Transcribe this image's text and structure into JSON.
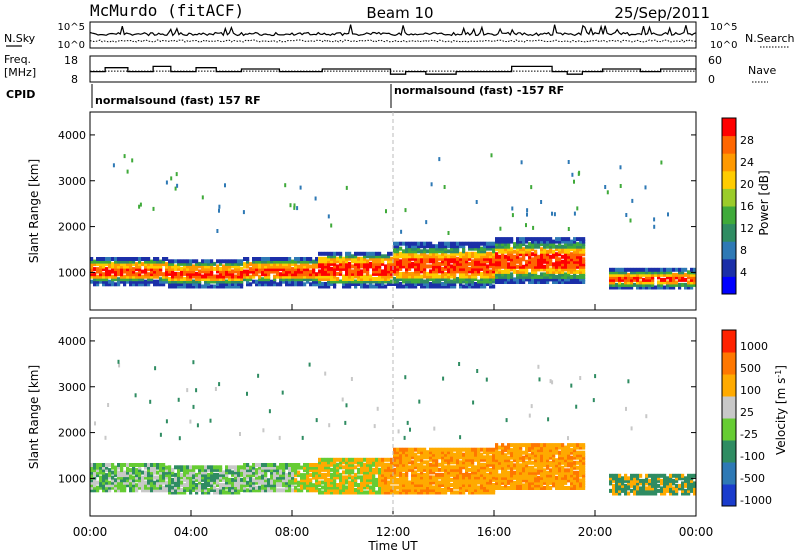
{
  "header": {
    "station": "McMurdo (fitACF)",
    "beam": "Beam 10",
    "date": "25/Sep/2011"
  },
  "noise_panel": {
    "left_label": "N.Sky",
    "right_label": "N.Search",
    "tick_top": "10^5",
    "tick_bottom": "10^0"
  },
  "freq_panel": {
    "left_label_1": "Freq.",
    "left_label_2": "[MHz]",
    "right_label": "Nave",
    "left_ticks": [
      "18",
      "8"
    ],
    "right_ticks": [
      "60",
      "0"
    ],
    "freq_steps_mhz": [
      [
        0,
        12
      ],
      [
        0.6,
        13.5
      ],
      [
        1.5,
        12
      ],
      [
        2.5,
        14
      ],
      [
        3.2,
        12
      ],
      [
        4.2,
        13.5
      ],
      [
        5.0,
        12
      ],
      [
        6.0,
        13
      ],
      [
        7.5,
        12
      ],
      [
        9.2,
        13
      ],
      [
        11.9,
        11
      ],
      [
        12.5,
        12
      ],
      [
        13.3,
        11
      ],
      [
        14.5,
        12
      ],
      [
        16.7,
        14
      ],
      [
        18.3,
        12
      ],
      [
        18.9,
        11
      ],
      [
        19.5,
        12
      ],
      [
        20.3,
        13
      ],
      [
        21.8,
        12
      ],
      [
        22.6,
        13
      ],
      [
        24,
        13
      ]
    ],
    "nave_level": 25
  },
  "cpid": {
    "label": "CPID",
    "segments": [
      {
        "start_hr": 0,
        "text": "normalsound (fast) 157 RF"
      },
      {
        "start_hr": 12,
        "text": "normalsound (fast) -157 RF"
      }
    ]
  },
  "chart_data": [
    {
      "type": "heatmap",
      "name": "power",
      "ylabel": "Slant Range [km]",
      "xlim": [
        0,
        24
      ],
      "ylim": [
        180,
        4500
      ],
      "yticks": [
        1000,
        2000,
        3000,
        4000
      ],
      "colorbar": {
        "label": "Power [dB]",
        "range": [
          0,
          32
        ],
        "ticks": [
          "4",
          "8",
          "12",
          "16",
          "20",
          "24",
          "28"
        ],
        "colors": [
          "#0000ff",
          "#1b2fa8",
          "#2e79b5",
          "#2f8c62",
          "#3faa3a",
          "#9bcc2a",
          "#ffcc00",
          "#ff9900",
          "#ff6600",
          "#ff0000"
        ]
      }
    },
    {
      "type": "heatmap",
      "name": "velocity",
      "ylabel": "Slant Range [km]",
      "xlabel": "Time UT",
      "xlim": [
        0,
        24
      ],
      "ylim": [
        180,
        4500
      ],
      "xticks": [
        "00:00",
        "04:00",
        "08:00",
        "12:00",
        "16:00",
        "20:00",
        "00:00"
      ],
      "yticks": [
        1000,
        2000,
        3000,
        4000
      ],
      "colorbar": {
        "label": "Velocity [m s^-1]",
        "ticks": [
          "1000",
          "500",
          "100",
          "25",
          "-25",
          "-100",
          "-500",
          "-1000"
        ],
        "colors": [
          "#1a3ccc",
          "#2e79b5",
          "#2f8c62",
          "#66cc33",
          "#c8c8c8",
          "#ffaa00",
          "#ff7700",
          "#ff2200"
        ]
      }
    }
  ]
}
